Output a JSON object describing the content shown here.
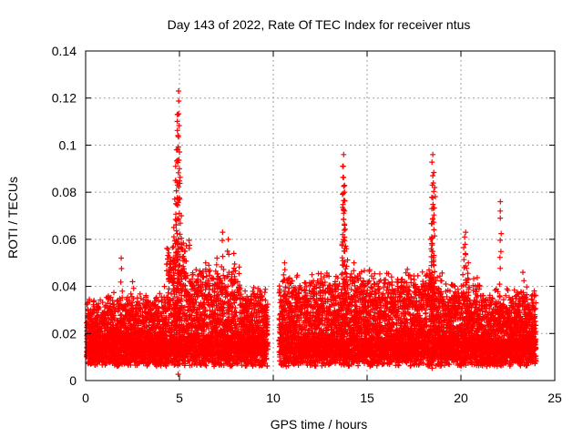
{
  "chart_data": {
    "type": "scatter",
    "title": "Day 143 of 2022, Rate Of TEC Index for receiver ntus",
    "xlabel": "GPS time / hours",
    "ylabel": "ROTI / TECUs",
    "xlim": [
      0,
      25
    ],
    "ylim": [
      0,
      0.14
    ],
    "xticks": [
      0,
      5,
      10,
      15,
      20,
      25
    ],
    "yticks": [
      0,
      0.02,
      0.04,
      0.06,
      0.08,
      0.1,
      0.12,
      0.14
    ],
    "xtick_labels": [
      "0",
      "5",
      "10",
      "15",
      "20",
      "25"
    ],
    "ytick_labels": [
      "0",
      "0.02",
      "0.04",
      "0.06",
      "0.08",
      "0.1",
      "0.12",
      "0.14"
    ],
    "grid": true,
    "marker": "+",
    "color": "#ff0000",
    "data_gap_hours": [
      9.7,
      10.3
    ],
    "series": [
      {
        "name": "ROTI",
        "points": [
          [
            0.3,
            0.018
          ],
          [
            0.8,
            0.022
          ],
          [
            1.2,
            0.035
          ],
          [
            1.9,
            0.052
          ],
          [
            2.5,
            0.042
          ],
          [
            3.0,
            0.025
          ],
          [
            3.5,
            0.03
          ],
          [
            4.2,
            0.04
          ],
          [
            4.7,
            0.065
          ],
          [
            4.8,
            0.085
          ],
          [
            4.85,
            0.098
          ],
          [
            4.9,
            0.113
          ],
          [
            4.95,
            0.123
          ],
          [
            5.0,
            0.09
          ],
          [
            5.1,
            0.07
          ],
          [
            5.3,
            0.055
          ],
          [
            5.7,
            0.045
          ],
          [
            6.4,
            0.05
          ],
          [
            7.0,
            0.052
          ],
          [
            7.3,
            0.063
          ],
          [
            7.6,
            0.06
          ],
          [
            7.9,
            0.054
          ],
          [
            8.5,
            0.038
          ],
          [
            9.2,
            0.03
          ],
          [
            9.5,
            0.03
          ],
          [
            10.6,
            0.05
          ],
          [
            11.2,
            0.038
          ],
          [
            11.8,
            0.036
          ],
          [
            12.5,
            0.038
          ],
          [
            13.3,
            0.042
          ],
          [
            13.7,
            0.091
          ],
          [
            13.75,
            0.096
          ],
          [
            13.8,
            0.08
          ],
          [
            13.8,
            0.072
          ],
          [
            13.9,
            0.056
          ],
          [
            14.3,
            0.05
          ],
          [
            14.8,
            0.042
          ],
          [
            15.6,
            0.04
          ],
          [
            16.3,
            0.044
          ],
          [
            17.0,
            0.042
          ],
          [
            17.6,
            0.04
          ],
          [
            18.3,
            0.047
          ],
          [
            18.4,
            0.06
          ],
          [
            18.45,
            0.073
          ],
          [
            18.5,
            0.087
          ],
          [
            18.5,
            0.096
          ],
          [
            18.6,
            0.082
          ],
          [
            19.5,
            0.035
          ],
          [
            20.1,
            0.045
          ],
          [
            20.2,
            0.061
          ],
          [
            20.25,
            0.063
          ],
          [
            20.4,
            0.05
          ],
          [
            20.7,
            0.034
          ],
          [
            21.4,
            0.028
          ],
          [
            22.1,
            0.076
          ],
          [
            22.6,
            0.03
          ],
          [
            23.0,
            0.032
          ],
          [
            23.3,
            0.046
          ],
          [
            23.4,
            0.035
          ],
          [
            23.8,
            0.022
          ]
        ]
      }
    ]
  }
}
